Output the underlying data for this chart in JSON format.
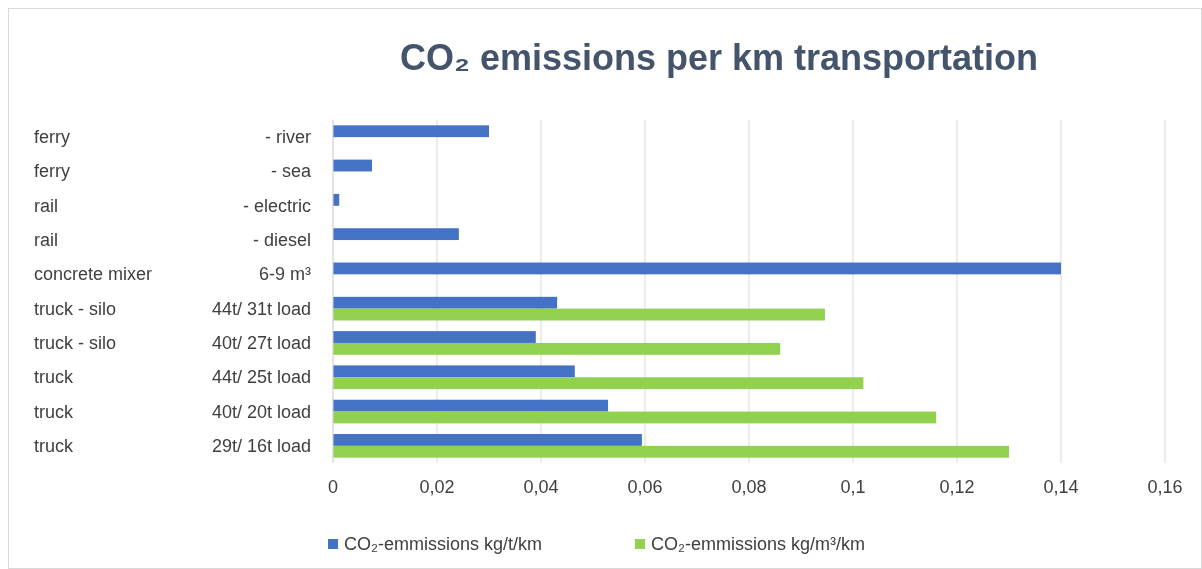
{
  "chart_data": {
    "type": "bar",
    "orientation": "horizontal",
    "title": "CO₂ emissions per km transportation",
    "categories": [
      "ferry  - river",
      "ferry  - sea",
      "rail  - electric",
      "rail  - diesel",
      "concrete mixer  6-9 m³",
      "truck - silo  44t/ 31t load",
      "truck - silo  40t/ 27t load",
      "truck  44t/ 25t load",
      "truck  40t/ 20t load",
      "truck  29t/ 16t load"
    ],
    "series": [
      {
        "name": "CO₂-emmissions kg/t/km",
        "color": "#4472c4",
        "values": [
          0.03,
          0.0075,
          0.0012,
          0.0242,
          0.14,
          0.0431,
          0.039,
          0.0465,
          0.0529,
          0.0594
        ]
      },
      {
        "name": "CO₂-emmissions kg/m³/km",
        "color": "#92d050",
        "values": [
          null,
          null,
          null,
          null,
          null,
          0.0946,
          0.086,
          0.102,
          0.116,
          0.13
        ]
      }
    ],
    "xlim": [
      0,
      0.16
    ],
    "xticks": [
      0,
      {
        "value": 0.02,
        "label": "0,02"
      },
      {
        "value": 0.04,
        "label": "0,04"
      },
      {
        "value": 0.06,
        "label": "0,06"
      },
      {
        "value": 0.08,
        "label": "0,08"
      },
      {
        "value": 0.1,
        "label": "0,1"
      },
      {
        "value": 0.12,
        "label": "0,12"
      },
      {
        "value": 0.14,
        "label": "0,14"
      },
      {
        "value": 0.16,
        "label": "0,16"
      }
    ],
    "grid": "x",
    "legend": "bottom"
  }
}
